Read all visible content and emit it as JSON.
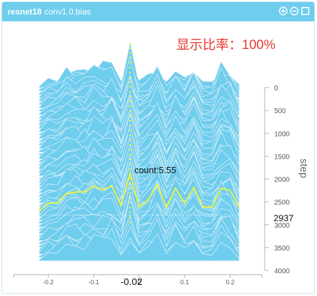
{
  "header": {
    "run": "resnet18",
    "tag": "conv1.0.bias",
    "tool_icons": [
      "zoom-in-icon",
      "zoom-out-icon",
      "fullscreen-icon"
    ]
  },
  "ratio_label": "显示比率：100%",
  "colors": {
    "fill": "#6fcdee",
    "highlight": "#f5f53a",
    "header": "#6fcdee",
    "ratio": "#e8372c",
    "axis": "#b0b0b0"
  },
  "chart_data": {
    "type": "area",
    "subtype": "histogram-ridgeline",
    "x_ticks": [
      "-0.2",
      "-0.1",
      "0",
      "0.1",
      "0.2"
    ],
    "x_tick_values": [
      -0.2,
      -0.1,
      0,
      0.1,
      0.2
    ],
    "xlim": [
      -0.25,
      0.25
    ],
    "y_ticks": [
      "0",
      "500",
      "1000",
      "1500",
      "2000",
      "2500",
      "3000",
      "3500",
      "4000"
    ],
    "y_tick_values": [
      0,
      500,
      1000,
      1500,
      2000,
      2500,
      3000,
      3500,
      4000
    ],
    "ylim": [
      0,
      4000
    ],
    "ylabel": "step",
    "x_bins": [
      -0.22,
      -0.2,
      -0.18,
      -0.16,
      -0.14,
      -0.12,
      -0.1,
      -0.08,
      -0.06,
      -0.04,
      -0.02,
      0.0,
      0.02,
      0.04,
      0.06,
      0.08,
      0.1,
      0.12,
      0.14,
      0.16,
      0.18,
      0.2,
      0.22
    ],
    "highlight": {
      "step": 2937,
      "step_label": "2937",
      "x": -0.02,
      "x_label": "-0.02",
      "count": 5.55,
      "count_label": "count:5.55",
      "counts": [
        0.5,
        1.5,
        1.6,
        2.8,
        3.0,
        3.0,
        3.8,
        3.3,
        3.8,
        1.2,
        5.55,
        1.0,
        2.0,
        4.0,
        1.0,
        3.5,
        1.5,
        3.6,
        1.0,
        1.0,
        3.5,
        3.2,
        1.0
      ]
    },
    "guide_line_x": -0.02,
    "peak_label": "count:5.55"
  }
}
